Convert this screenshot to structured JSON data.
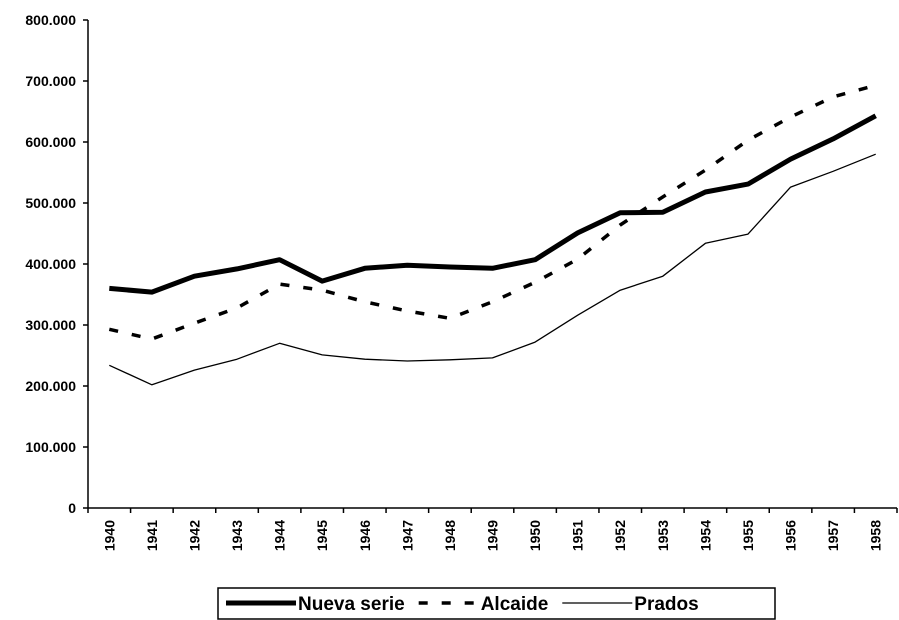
{
  "chart_data": {
    "type": "line",
    "categories": [
      "1940",
      "1941",
      "1942",
      "1943",
      "1944",
      "1945",
      "1946",
      "1947",
      "1948",
      "1949",
      "1950",
      "1951",
      "1952",
      "1953",
      "1954",
      "1955",
      "1956",
      "1957",
      "1958"
    ],
    "series": [
      {
        "name": "Nueva serie",
        "color": "#000000",
        "values": [
          360000,
          354000,
          380000,
          392000,
          407000,
          372000,
          393000,
          398000,
          395000,
          393000,
          407000,
          451000,
          484000,
          485000,
          518000,
          531000,
          572000,
          605000,
          643000
        ]
      },
      {
        "name": "Alcaide",
        "color": "#000000",
        "values": [
          293000,
          277000,
          303000,
          328000,
          367000,
          357000,
          338000,
          323000,
          311000,
          338000,
          370000,
          408000,
          464000,
          510000,
          554000,
          603000,
          641000,
          674000,
          693000
        ]
      },
      {
        "name": "Prados",
        "color": "#000000",
        "values": [
          234000,
          202000,
          226000,
          244000,
          270000,
          251000,
          244000,
          241000,
          243000,
          246000,
          272000,
          316000,
          357000,
          380000,
          434000,
          449000,
          526000,
          552000,
          580000
        ]
      }
    ],
    "ylim": [
      0,
      800000
    ],
    "yticks": [
      0,
      {
        "value": 100000,
        "label": "100.000"
      },
      {
        "value": 200000,
        "label": "200.000"
      },
      {
        "value": 300000,
        "label": "300.000"
      },
      {
        "value": 400000,
        "label": "400.000"
      },
      {
        "value": 500000,
        "label": "500.000"
      },
      {
        "value": 600000,
        "label": "600.000"
      },
      {
        "value": 700000,
        "label": "700.000"
      },
      {
        "value": 800000,
        "label": "800.000"
      }
    ],
    "grid": false,
    "legend": "bottom"
  }
}
